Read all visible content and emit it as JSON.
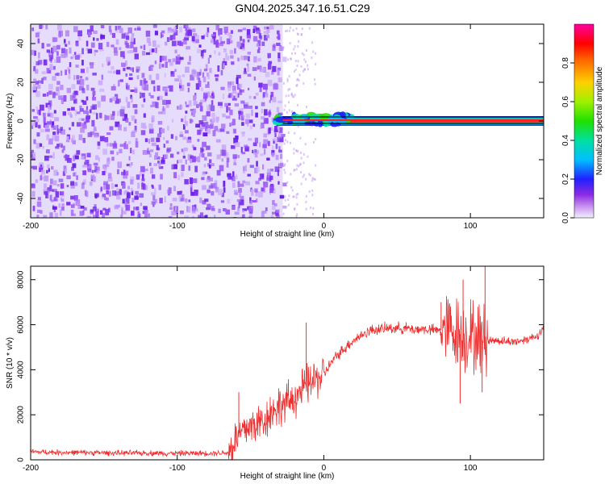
{
  "title": "GN04.2025.347.16.51.C29",
  "colors": {
    "snr_line": "#f03030",
    "spectral_points": "#7a2cf0",
    "centerline": "#000000"
  },
  "chart_data": [
    {
      "type": "heatmap",
      "title": "",
      "xlabel": "Height of straight line (km)",
      "ylabel": "Frequency (Hz)",
      "xlim": [
        -200,
        150
      ],
      "ylim": [
        -50,
        50
      ],
      "xticks": [
        "-200",
        "-100",
        "0",
        "100"
      ],
      "yticks": [
        "-40",
        "-20",
        "0",
        "20",
        "40"
      ],
      "xtick_values": [
        -200,
        -100,
        0,
        100
      ],
      "ytick_values": [
        -40,
        -20,
        0,
        20,
        40
      ],
      "colorbar": {
        "label": "Normalized spectral amplitude",
        "range": [
          0,
          1
        ],
        "ticks": [
          "0.0",
          "0.2",
          "0.4",
          "0.6",
          "0.8"
        ],
        "tick_values": [
          0.0,
          0.2,
          0.4,
          0.6,
          0.8
        ],
        "colormap": "hsv-like (magenta to red)"
      },
      "regions": [
        {
          "x_range": [
            -200,
            -28
          ],
          "description_value": "noise",
          "amplitude": 0.1,
          "frequency_range": [
            -50,
            50
          ]
        },
        {
          "x_range": [
            -28,
            150
          ],
          "amplitude": 1.0,
          "frequency": 0
        }
      ],
      "grid": false
    },
    {
      "type": "line",
      "title": "",
      "xlabel": "Height of straight line (km)",
      "ylabel": "SNR (10 * v/v)",
      "xlim": [
        -200,
        150
      ],
      "ylim": [
        0,
        8600
      ],
      "xticks": [
        "-200",
        "-100",
        "0",
        "100"
      ],
      "yticks": [
        "0",
        "2000",
        "4000",
        "6000",
        "8000"
      ],
      "xtick_values": [
        -200,
        -100,
        0,
        100
      ],
      "ytick_values": [
        0,
        2000,
        4000,
        6000,
        8000
      ],
      "series": [
        {
          "x": [
            -200,
            -180,
            -160,
            -140,
            -120,
            -100,
            -80,
            -65,
            -60,
            -55,
            -50,
            -45,
            -40,
            -35,
            -30,
            -25,
            -20,
            -15,
            -10,
            -5,
            0,
            5,
            10,
            15,
            20,
            25,
            30,
            35,
            40,
            45,
            50,
            55,
            60,
            65,
            70,
            75,
            80,
            85,
            90,
            95,
            100,
            105,
            110,
            115,
            120,
            125,
            130,
            135,
            140,
            145,
            150
          ],
          "y": [
            350,
            330,
            320,
            300,
            300,
            290,
            290,
            320,
            900,
            1300,
            1500,
            1600,
            1800,
            2200,
            2400,
            2500,
            2800,
            3100,
            3400,
            3600,
            3800,
            4300,
            4700,
            5000,
            5300,
            5500,
            5700,
            5800,
            5800,
            5850,
            5850,
            5850,
            5800,
            5800,
            5800,
            5750,
            5750,
            5800,
            5700,
            5500,
            5500,
            5400,
            5300,
            5300,
            5300,
            5250,
            5250,
            5300,
            5400,
            5500,
            5800
          ]
        }
      ],
      "grid": false
    }
  ]
}
